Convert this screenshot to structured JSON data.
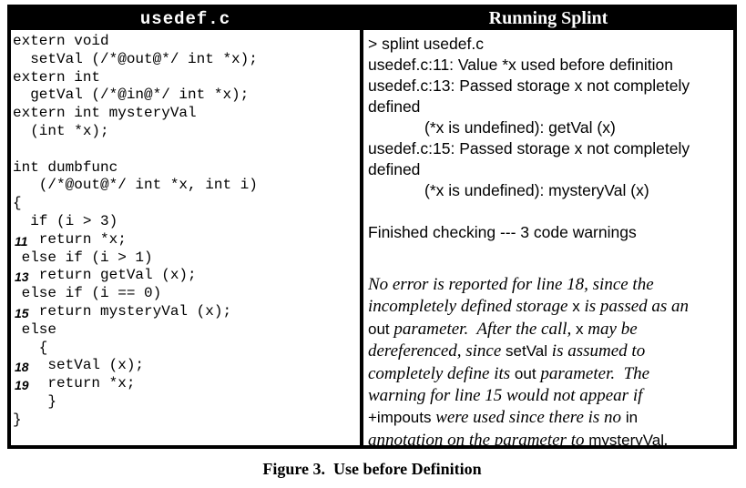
{
  "colors": {
    "header_bg": "#000000",
    "header_fg": "#ffffff",
    "body_bg": "#ffffff",
    "text": "#000000"
  },
  "table": {
    "left_header": "usedef.c",
    "right_header": "Running Splint"
  },
  "code": {
    "lines": [
      {
        "num": "",
        "text": "extern void"
      },
      {
        "num": "",
        "text": "  setVal (/*@out@*/ int *x);"
      },
      {
        "num": "",
        "text": "extern int"
      },
      {
        "num": "",
        "text": "  getVal (/*@in@*/ int *x);"
      },
      {
        "num": "",
        "text": "extern int mysteryVal"
      },
      {
        "num": "",
        "text": "  (int *x);"
      },
      {
        "num": "",
        "text": ""
      },
      {
        "num": "",
        "text": "int dumbfunc"
      },
      {
        "num": "",
        "text": "   (/*@out@*/ int *x, int i)"
      },
      {
        "num": "",
        "text": "{"
      },
      {
        "num": "",
        "text": "  if (i > 3)"
      },
      {
        "num": "11",
        "text": "   return *x;"
      },
      {
        "num": "",
        "text": " else if (i > 1)"
      },
      {
        "num": "13",
        "text": "   return getVal (x);"
      },
      {
        "num": "",
        "text": " else if (i == 0)"
      },
      {
        "num": "15",
        "text": "   return mysteryVal (x);"
      },
      {
        "num": "",
        "text": " else"
      },
      {
        "num": "",
        "text": "   {"
      },
      {
        "num": "18",
        "text": "    setVal (x);"
      },
      {
        "num": "19",
        "text": "    return *x;"
      },
      {
        "num": "",
        "text": "    }"
      },
      {
        "num": "",
        "text": "}"
      }
    ]
  },
  "output": {
    "lines": [
      {
        "text": "> splint usedef.c",
        "indent": false
      },
      {
        "text": "usedef.c:11: Value *x used before definition",
        "indent": false
      },
      {
        "text": "usedef.c:13: Passed storage x not completely",
        "indent": false
      },
      {
        "text": "defined",
        "indent": false
      },
      {
        "text": "(*x is undefined): getVal (x)",
        "indent": true
      },
      {
        "text": "usedef.c:15: Passed storage x not completely",
        "indent": false
      },
      {
        "text": "defined",
        "indent": false
      },
      {
        "text": "(*x is undefined): mysteryVal (x)",
        "indent": true
      },
      {
        "text": "",
        "indent": false
      },
      {
        "text": "Finished checking --- 3 code warnings",
        "indent": false
      }
    ],
    "note_lines": [
      [
        {
          "t": "No error is reported for line 18, since the",
          "s": "it"
        }
      ],
      [
        {
          "t": "incompletely defined storage ",
          "s": "it"
        },
        {
          "t": "x",
          "s": "code"
        },
        {
          "t": " is passed as an",
          "s": "it"
        }
      ],
      [
        {
          "t": "out",
          "s": "code"
        },
        {
          "t": " parameter.  After the call, ",
          "s": "it"
        },
        {
          "t": "x",
          "s": "code"
        },
        {
          "t": " may be",
          "s": "it"
        }
      ],
      [
        {
          "t": "dereferenced, since ",
          "s": "it"
        },
        {
          "t": "setVal",
          "s": "code"
        },
        {
          "t": " is assumed to",
          "s": "it"
        }
      ],
      [
        {
          "t": "completely define its ",
          "s": "it"
        },
        {
          "t": "out",
          "s": "code"
        },
        {
          "t": " parameter.  The",
          "s": "it"
        }
      ],
      [
        {
          "t": "warning for line 15 would not appear if",
          "s": "it"
        }
      ],
      [
        {
          "t": "+impouts",
          "s": "code"
        },
        {
          "t": " were used since there is no ",
          "s": "it"
        },
        {
          "t": "in",
          "s": "code"
        }
      ],
      [
        {
          "t": "annotation on the parameter to ",
          "s": "it"
        },
        {
          "t": "mysteryVal",
          "s": "code"
        },
        {
          "t": ".",
          "s": "it"
        }
      ]
    ]
  },
  "caption": "Figure 3.  Use before Definition"
}
